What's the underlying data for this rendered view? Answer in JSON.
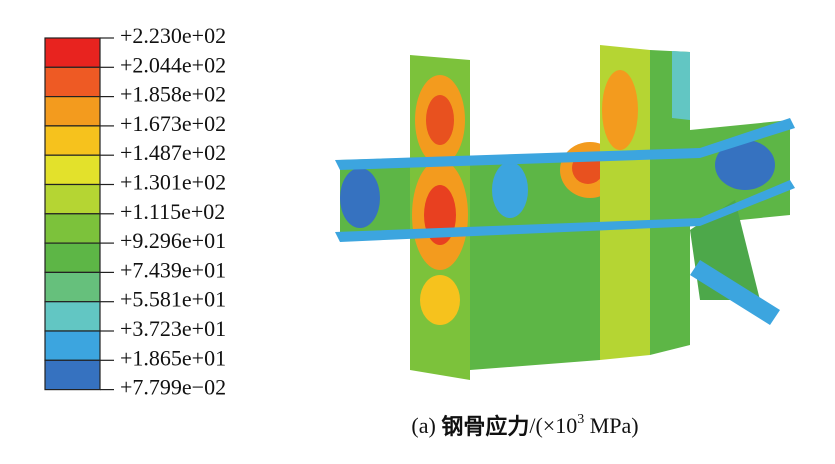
{
  "legend": {
    "labels": [
      "+2.230e+02",
      "+2.044e+02",
      "+1.858e+02",
      "+1.673e+02",
      "+1.487e+02",
      "+1.301e+02",
      "+1.115e+02",
      "+9.296e+01",
      "+7.439e+01",
      "+5.581e+01",
      "+3.723e+01",
      "+1.865e+01",
      "+7.799e−02"
    ],
    "colors": [
      "#e8231f",
      "#ee5a24",
      "#f39b1e",
      "#f6c21d",
      "#e3e12b",
      "#b5d533",
      "#7cc23b",
      "#5db646",
      "#66c07c",
      "#62c6c3",
      "#3ca5df",
      "#3672c0"
    ]
  },
  "caption": {
    "label": "(a)",
    "title": "钢骨应力",
    "unit_open": "/(×10",
    "exponent": "3",
    "unit_close": "MPa)"
  }
}
